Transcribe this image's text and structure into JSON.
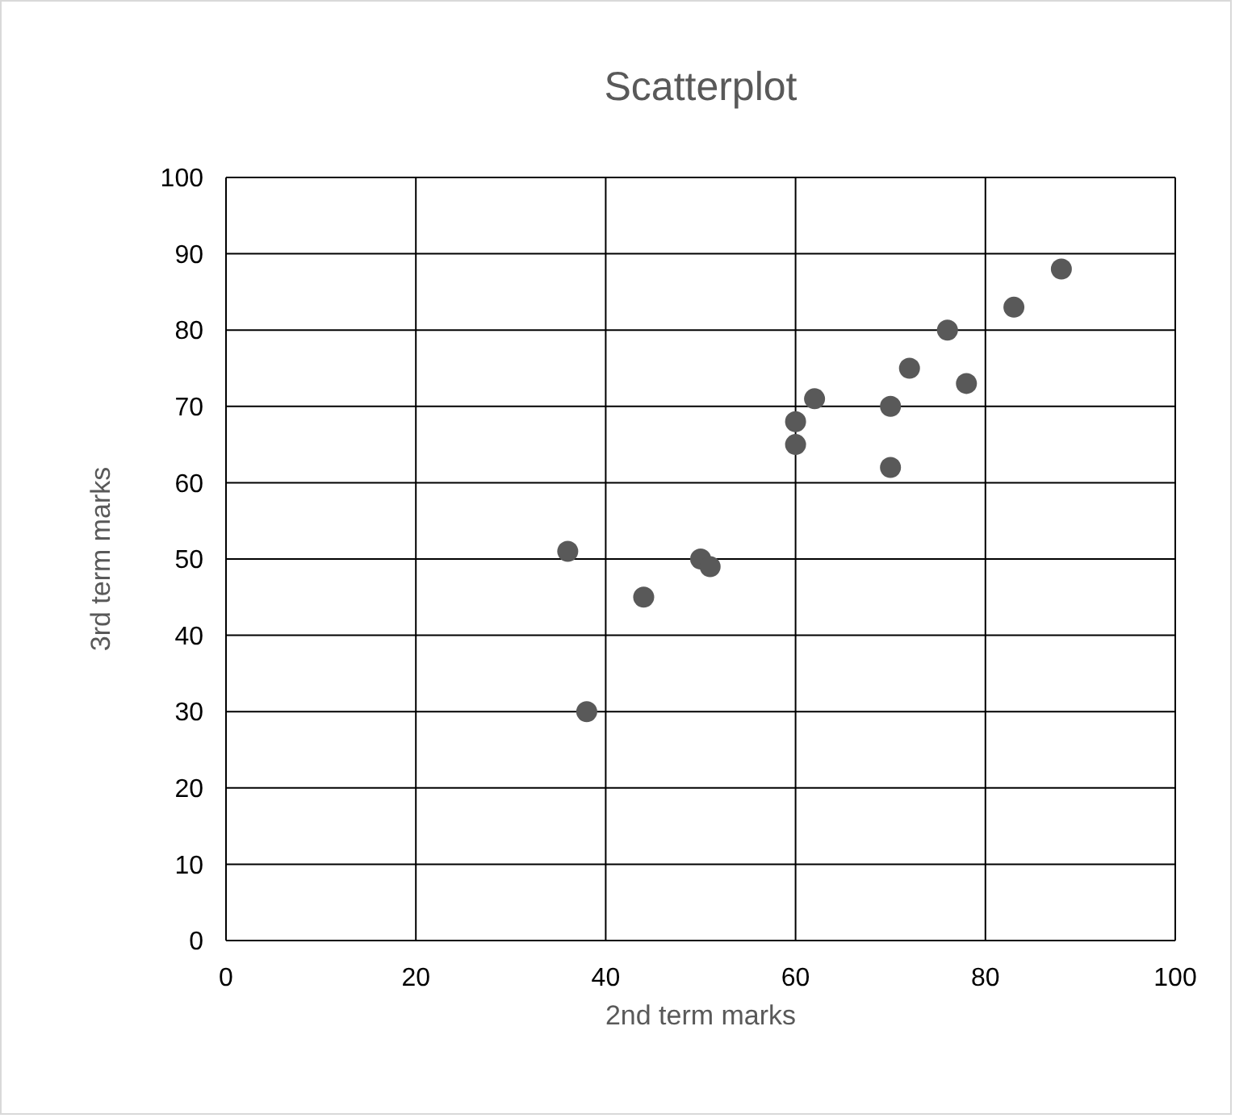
{
  "chart_data": {
    "type": "scatter",
    "title": "Scatterplot",
    "xlabel": "2nd term marks",
    "ylabel": "3rd term marks",
    "x": [
      36,
      38,
      44,
      50,
      51,
      60,
      60,
      62,
      70,
      70,
      72,
      76,
      78,
      83,
      88
    ],
    "values": [
      51,
      30,
      45,
      50,
      49,
      68,
      65,
      71,
      70,
      62,
      75,
      80,
      73,
      83,
      88
    ],
    "color": "#595959",
    "marker": "circle",
    "xlim": [
      0,
      100
    ],
    "ylim": [
      0,
      100
    ],
    "xticks": [
      0,
      20,
      40,
      60,
      80,
      100
    ],
    "yticks": [
      0,
      10,
      20,
      30,
      40,
      50,
      60,
      70,
      80,
      90,
      100
    ],
    "grid": true
  }
}
